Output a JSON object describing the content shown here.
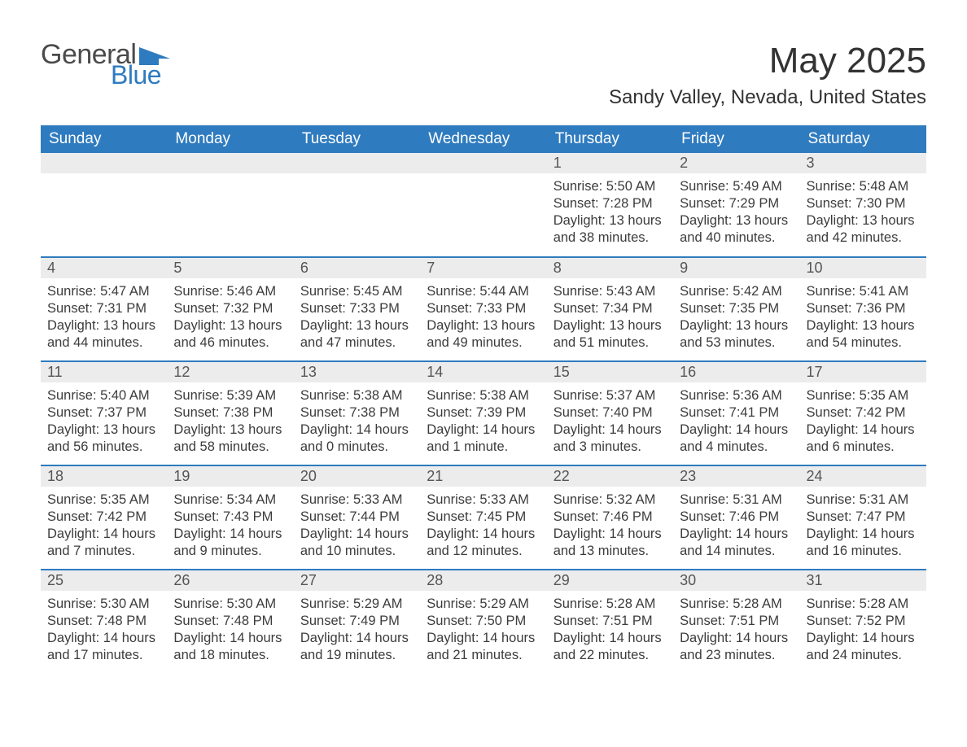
{
  "logo": {
    "word1": "General",
    "word2": "Blue",
    "flag_color": "#2f7bbf",
    "text_gray": "#4a4a4a"
  },
  "title": "May 2025",
  "location": "Sandy Valley, Nevada, United States",
  "colors": {
    "header_bg": "#2f7bbf",
    "header_text": "#ffffff",
    "daynum_bg": "#ececec",
    "row_divider": "#2f7bbf",
    "body_text": "#3c3c3c",
    "page_bg": "#ffffff"
  },
  "weekdays": [
    "Sunday",
    "Monday",
    "Tuesday",
    "Wednesday",
    "Thursday",
    "Friday",
    "Saturday"
  ],
  "first_weekday_index": 4,
  "days": [
    {
      "n": 1,
      "sunrise": "5:50 AM",
      "sunset": "7:28 PM",
      "daylight": "13 hours and 38 minutes."
    },
    {
      "n": 2,
      "sunrise": "5:49 AM",
      "sunset": "7:29 PM",
      "daylight": "13 hours and 40 minutes."
    },
    {
      "n": 3,
      "sunrise": "5:48 AM",
      "sunset": "7:30 PM",
      "daylight": "13 hours and 42 minutes."
    },
    {
      "n": 4,
      "sunrise": "5:47 AM",
      "sunset": "7:31 PM",
      "daylight": "13 hours and 44 minutes."
    },
    {
      "n": 5,
      "sunrise": "5:46 AM",
      "sunset": "7:32 PM",
      "daylight": "13 hours and 46 minutes."
    },
    {
      "n": 6,
      "sunrise": "5:45 AM",
      "sunset": "7:33 PM",
      "daylight": "13 hours and 47 minutes."
    },
    {
      "n": 7,
      "sunrise": "5:44 AM",
      "sunset": "7:33 PM",
      "daylight": "13 hours and 49 minutes."
    },
    {
      "n": 8,
      "sunrise": "5:43 AM",
      "sunset": "7:34 PM",
      "daylight": "13 hours and 51 minutes."
    },
    {
      "n": 9,
      "sunrise": "5:42 AM",
      "sunset": "7:35 PM",
      "daylight": "13 hours and 53 minutes."
    },
    {
      "n": 10,
      "sunrise": "5:41 AM",
      "sunset": "7:36 PM",
      "daylight": "13 hours and 54 minutes."
    },
    {
      "n": 11,
      "sunrise": "5:40 AM",
      "sunset": "7:37 PM",
      "daylight": "13 hours and 56 minutes."
    },
    {
      "n": 12,
      "sunrise": "5:39 AM",
      "sunset": "7:38 PM",
      "daylight": "13 hours and 58 minutes."
    },
    {
      "n": 13,
      "sunrise": "5:38 AM",
      "sunset": "7:38 PM",
      "daylight": "14 hours and 0 minutes."
    },
    {
      "n": 14,
      "sunrise": "5:38 AM",
      "sunset": "7:39 PM",
      "daylight": "14 hours and 1 minute."
    },
    {
      "n": 15,
      "sunrise": "5:37 AM",
      "sunset": "7:40 PM",
      "daylight": "14 hours and 3 minutes."
    },
    {
      "n": 16,
      "sunrise": "5:36 AM",
      "sunset": "7:41 PM",
      "daylight": "14 hours and 4 minutes."
    },
    {
      "n": 17,
      "sunrise": "5:35 AM",
      "sunset": "7:42 PM",
      "daylight": "14 hours and 6 minutes."
    },
    {
      "n": 18,
      "sunrise": "5:35 AM",
      "sunset": "7:42 PM",
      "daylight": "14 hours and 7 minutes."
    },
    {
      "n": 19,
      "sunrise": "5:34 AM",
      "sunset": "7:43 PM",
      "daylight": "14 hours and 9 minutes."
    },
    {
      "n": 20,
      "sunrise": "5:33 AM",
      "sunset": "7:44 PM",
      "daylight": "14 hours and 10 minutes."
    },
    {
      "n": 21,
      "sunrise": "5:33 AM",
      "sunset": "7:45 PM",
      "daylight": "14 hours and 12 minutes."
    },
    {
      "n": 22,
      "sunrise": "5:32 AM",
      "sunset": "7:46 PM",
      "daylight": "14 hours and 13 minutes."
    },
    {
      "n": 23,
      "sunrise": "5:31 AM",
      "sunset": "7:46 PM",
      "daylight": "14 hours and 14 minutes."
    },
    {
      "n": 24,
      "sunrise": "5:31 AM",
      "sunset": "7:47 PM",
      "daylight": "14 hours and 16 minutes."
    },
    {
      "n": 25,
      "sunrise": "5:30 AM",
      "sunset": "7:48 PM",
      "daylight": "14 hours and 17 minutes."
    },
    {
      "n": 26,
      "sunrise": "5:30 AM",
      "sunset": "7:48 PM",
      "daylight": "14 hours and 18 minutes."
    },
    {
      "n": 27,
      "sunrise": "5:29 AM",
      "sunset": "7:49 PM",
      "daylight": "14 hours and 19 minutes."
    },
    {
      "n": 28,
      "sunrise": "5:29 AM",
      "sunset": "7:50 PM",
      "daylight": "14 hours and 21 minutes."
    },
    {
      "n": 29,
      "sunrise": "5:28 AM",
      "sunset": "7:51 PM",
      "daylight": "14 hours and 22 minutes."
    },
    {
      "n": 30,
      "sunrise": "5:28 AM",
      "sunset": "7:51 PM",
      "daylight": "14 hours and 23 minutes."
    },
    {
      "n": 31,
      "sunrise": "5:28 AM",
      "sunset": "7:52 PM",
      "daylight": "14 hours and 24 minutes."
    }
  ],
  "labels": {
    "sunrise": "Sunrise:",
    "sunset": "Sunset:",
    "daylight": "Daylight:"
  }
}
